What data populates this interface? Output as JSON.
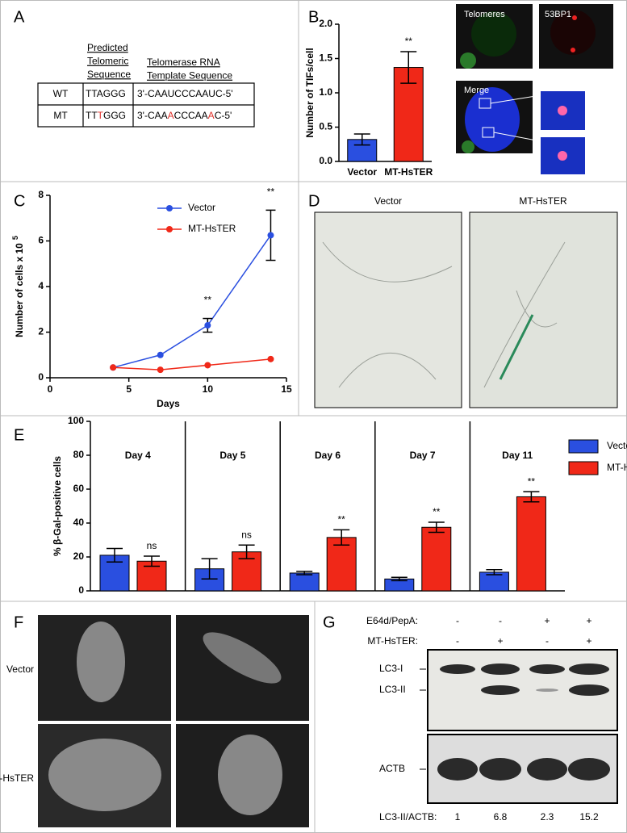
{
  "panel_letters": [
    "A",
    "B",
    "C",
    "D",
    "E",
    "F",
    "G"
  ],
  "table": {
    "headers": [
      [
        "Predicted",
        "Telomeric",
        "Sequence"
      ],
      [
        "Telomerase RNA",
        "Template Sequence"
      ]
    ],
    "rows": [
      {
        "name": "WT",
        "sequence": [
          {
            "text": "TTAGGG"
          }
        ],
        "template": [
          {
            "text": "3'-CAAUCCCAAUC-5'"
          }
        ]
      },
      {
        "name": "MT",
        "sequence": [
          {
            "text": "TT"
          },
          {
            "text": "T",
            "color": "#e0302a"
          },
          {
            "text": "GGG"
          }
        ],
        "template": [
          {
            "text": "3'-CAA"
          },
          {
            "text": "A",
            "color": "#e0302a"
          },
          {
            "text": "CCCAA"
          },
          {
            "text": "A",
            "color": "#e0302a"
          },
          {
            "text": "C-5'"
          }
        ]
      }
    ]
  },
  "chart_data": [
    {
      "type": "bar",
      "ylabel": "Number of TIFs/cell",
      "categories": [
        "Vector",
        "MT-HsTER"
      ],
      "values": [
        0.32,
        1.37
      ],
      "errors": [
        0.08,
        0.23
      ],
      "colors": [
        "#2a4fe0",
        "#f02818"
      ],
      "annotations": [
        null,
        "**"
      ],
      "ylim": [
        0,
        2
      ],
      "yticks": [
        {
          "value": 0,
          "label": "0.0"
        },
        0.5,
        {
          "value": 1,
          "label": "1.0"
        },
        1.5,
        {
          "value": 2,
          "label": "2.0"
        }
      ]
    },
    {
      "type": "line",
      "ylabel": "Number of cells x 10",
      "ylabel_exponent": "5",
      "xlabel": "Days",
      "x": [
        4,
        7,
        10,
        14
      ],
      "series": [
        {
          "name": "Vector",
          "color": "#2a4fe0",
          "values": [
            0.45,
            1.0,
            2.3,
            6.25
          ],
          "errors": [
            0.05,
            0.05,
            0.3,
            1.1
          ]
        },
        {
          "name": "MT-HsTER",
          "color": "#f02818",
          "values": [
            0.45,
            0.35,
            0.55,
            0.82
          ],
          "errors": [
            0.03,
            0.03,
            0.03,
            0.04
          ]
        }
      ],
      "annotations": [
        null,
        null,
        "**",
        "**"
      ],
      "xlim": [
        0,
        15
      ],
      "xticks": [
        0,
        5,
        10,
        15
      ],
      "ylim": [
        0,
        8
      ],
      "yticks": [
        0,
        2,
        4,
        6,
        8
      ]
    },
    {
      "type": "grouped_bar",
      "ylabel": "% β-Gal-positive cells",
      "categories": [
        "Day 4",
        "Day 5",
        "Day 6",
        "Day 7",
        "Day 11"
      ],
      "series": [
        {
          "name": "Vector",
          "color": "#2a4fe0",
          "values": [
            21,
            13,
            10.5,
            7,
            11
          ],
          "errors": [
            4,
            6,
            1,
            1,
            1.5
          ]
        },
        {
          "name": "MT-HsTER",
          "color": "#f02818",
          "values": [
            17.5,
            23,
            31.5,
            37.5,
            55.5
          ],
          "errors": [
            3,
            4,
            4.5,
            3,
            3
          ]
        }
      ],
      "annotations": [
        "ns",
        "ns",
        "**",
        "**",
        "**"
      ],
      "ylim": [
        0,
        100
      ],
      "yticks": [
        0,
        20,
        40,
        60,
        80,
        100
      ]
    }
  ],
  "images_B": [
    "Telomeres",
    "53BP1",
    "Merge"
  ],
  "images_D": [
    "Vector",
    "MT-HsTER"
  ],
  "images_F": [
    "Vector",
    "MT-HsTER"
  ],
  "blot": {
    "conditions": [
      {
        "name": "E64d/PepA:",
        "states": [
          "-",
          "-",
          "+",
          "+"
        ]
      },
      {
        "name": "MT-HsTER:",
        "states": [
          "-",
          "+",
          "-",
          "+"
        ]
      }
    ],
    "bands": [
      "LC3-I",
      "LC3-II",
      "ACTB"
    ],
    "ratio": {
      "name": "LC3-II/ACTB:",
      "values": [
        1,
        6.8,
        2.3,
        15.2
      ]
    }
  }
}
